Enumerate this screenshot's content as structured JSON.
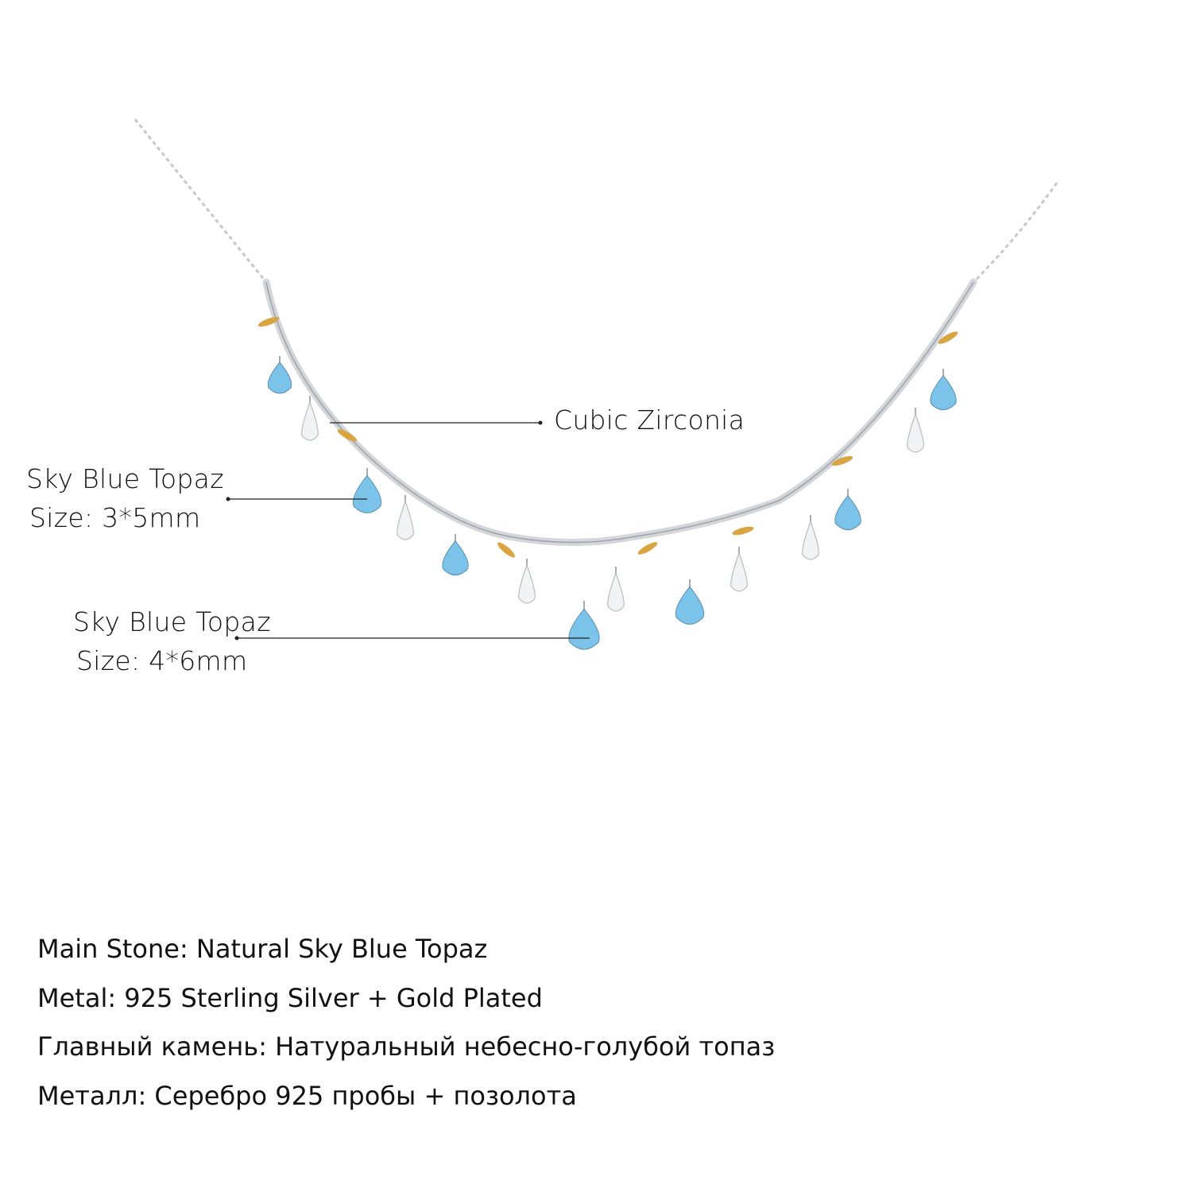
{
  "callouts": {
    "cubic_zirconia": "Cubic Zirconia",
    "topaz_small": {
      "name": "Sky Blue Topaz",
      "size": "Size: 3*5mm"
    },
    "topaz_large": {
      "name": "Sky Blue Topaz",
      "size": "Size: 4*6mm"
    }
  },
  "specs": [
    "Main Stone: Natural Sky Blue Topaz",
    "Metal: 925 Sterling Silver + Gold Plated",
    "Главный камень: Натуральный небесно-голубой топаз",
    "Металл: Серебро 925 пробы + позолота"
  ],
  "colors": {
    "topaz": "#7cc3ea",
    "gold": "#d9a441",
    "silver": "#c9ccd1"
  }
}
